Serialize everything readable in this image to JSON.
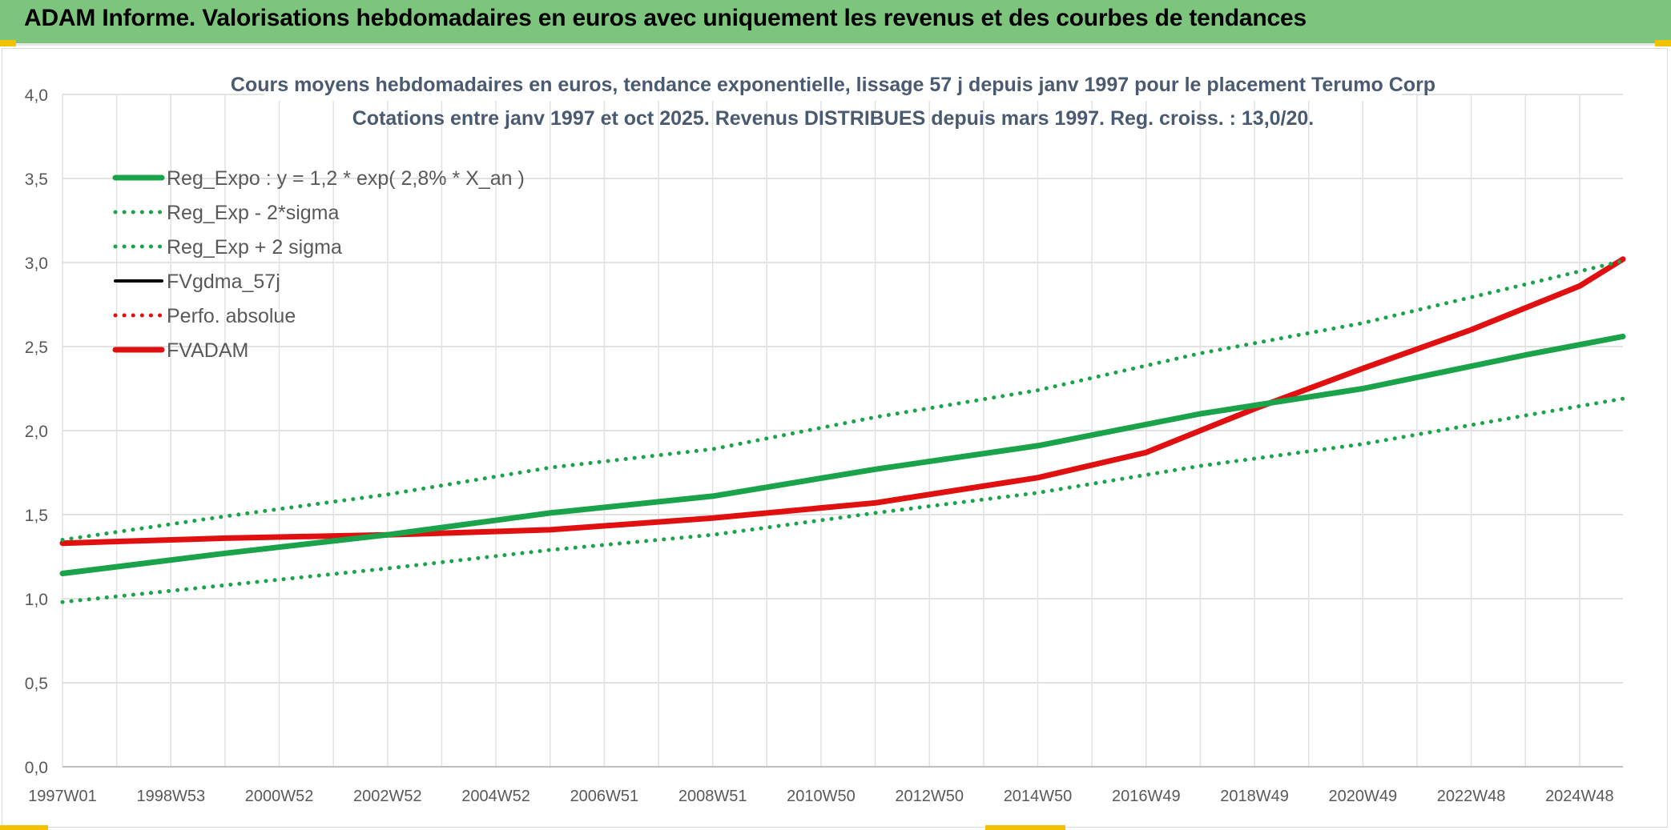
{
  "header": {
    "title": "ADAM Informe. Valorisations hebdomadaires en euros avec uniquement les revenus et des courbes de tendances"
  },
  "chart_data": {
    "type": "line",
    "title": "Cours moyens hebdomadaires en euros, tendance exponentielle, lissage 57 j depuis janv 1997 pour le placement Terumo Corp",
    "subtitle": "Cotations entre janv 1997 et oct 2025. Revenus DISTRIBUES depuis mars 1997. Reg. croiss. : 13,0/20.",
    "xlabel": "",
    "ylabel": "",
    "x_range": [
      1997.0,
      2025.8
    ],
    "ylim": [
      0,
      4
    ],
    "y_ticks": [
      "0,0",
      "0,5",
      "1,0",
      "1,5",
      "2,0",
      "2,5",
      "3,0",
      "3,5",
      "4,0"
    ],
    "x_tick_labels": [
      "1997W01",
      "1998W53",
      "2000W52",
      "2002W52",
      "2004W52",
      "2006W51",
      "2008W51",
      "2010W50",
      "2012W50",
      "2014W50",
      "2016W49",
      "2018W49",
      "2020W49",
      "2022W48",
      "2024W48"
    ],
    "x_tick_positions": [
      1997.0,
      1999.0,
      2001.0,
      2003.0,
      2005.0,
      2007.0,
      2009.0,
      2011.0,
      2013.0,
      2015.0,
      2017.0,
      2019.0,
      2021.0,
      2023.0,
      2025.0
    ],
    "grid": true,
    "legend_position": "top-left",
    "series": [
      {
        "name": "Reg_Expo : y = 1,2 * exp( 2,8% *  X_an )",
        "color": "#1aa34a",
        "style": "solid",
        "x": [
          1997.0,
          2000.0,
          2003.0,
          2006.0,
          2009.0,
          2012.0,
          2015.0,
          2018.0,
          2021.0,
          2024.0,
          2025.8
        ],
        "y": [
          1.15,
          1.27,
          1.38,
          1.51,
          1.61,
          1.77,
          1.91,
          2.1,
          2.25,
          2.45,
          2.56
        ]
      },
      {
        "name": "Reg_Exp - 2*sigma",
        "color": "#1aa34a",
        "style": "dotted",
        "x": [
          1997.0,
          2000.0,
          2003.0,
          2006.0,
          2009.0,
          2012.0,
          2015.0,
          2018.0,
          2021.0,
          2024.0,
          2025.8
        ],
        "y": [
          0.98,
          1.08,
          1.18,
          1.29,
          1.38,
          1.51,
          1.63,
          1.79,
          1.92,
          2.09,
          2.19
        ]
      },
      {
        "name": "Reg_Exp + 2 sigma",
        "color": "#1aa34a",
        "style": "dotted",
        "x": [
          1997.0,
          2000.0,
          2003.0,
          2006.0,
          2009.0,
          2012.0,
          2015.0,
          2018.0,
          2021.0,
          2024.0,
          2025.8
        ],
        "y": [
          1.35,
          1.49,
          1.62,
          1.78,
          1.89,
          2.08,
          2.24,
          2.46,
          2.64,
          2.87,
          3.01
        ]
      },
      {
        "name": "FVgdma_57j",
        "color": "#000000",
        "style": "solid",
        "x": [
          1997.0,
          2000.0,
          2003.0,
          2006.0,
          2009.0,
          2012.0,
          2015.0,
          2017.0,
          2019.0,
          2021.0,
          2023.0,
          2025.0,
          2025.8
        ],
        "y": [
          1.33,
          1.36,
          1.38,
          1.41,
          1.48,
          1.57,
          1.72,
          1.87,
          2.13,
          2.37,
          2.6,
          2.86,
          3.02
        ]
      },
      {
        "name": "Perfo. absolue",
        "color": "#e01010",
        "style": "dotted",
        "x": [
          1997.0,
          2000.0,
          2003.0,
          2006.0,
          2009.0,
          2012.0,
          2015.0,
          2017.0,
          2019.0,
          2021.0,
          2023.0,
          2025.0,
          2025.8
        ],
        "y": [
          1.33,
          1.36,
          1.38,
          1.41,
          1.48,
          1.57,
          1.72,
          1.87,
          2.13,
          2.37,
          2.6,
          2.86,
          3.02
        ]
      },
      {
        "name": "FVADAM",
        "color": "#e01010",
        "style": "solid",
        "x": [
          1997.0,
          2000.0,
          2003.0,
          2006.0,
          2009.0,
          2012.0,
          2015.0,
          2017.0,
          2019.0,
          2021.0,
          2023.0,
          2025.0,
          2025.8
        ],
        "y": [
          1.33,
          1.36,
          1.38,
          1.41,
          1.48,
          1.57,
          1.72,
          1.87,
          2.13,
          2.37,
          2.6,
          2.86,
          3.02
        ]
      }
    ]
  }
}
